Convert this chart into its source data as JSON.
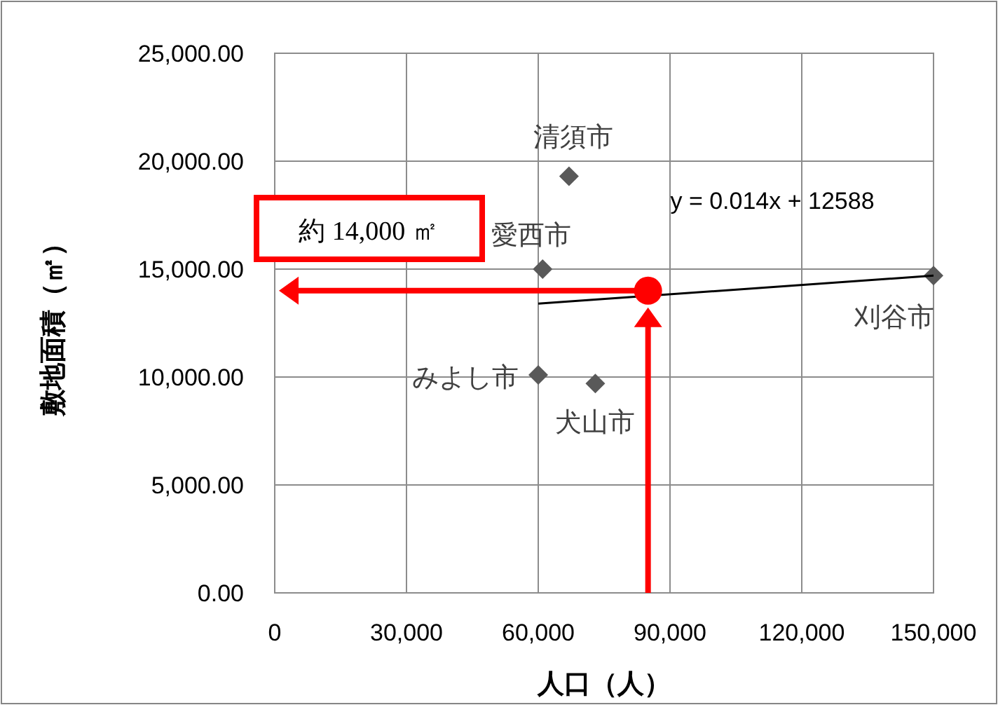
{
  "chart_data": {
    "type": "scatter",
    "xlabel": "人口（人）",
    "ylabel": "敷地面積（㎡）",
    "xlim": [
      0,
      150000
    ],
    "ylim": [
      0,
      25000
    ],
    "xticks": [
      {
        "value": 0,
        "label": "0"
      },
      {
        "value": 30000,
        "label": "30,000"
      },
      {
        "value": 60000,
        "label": "60,000"
      },
      {
        "value": 90000,
        "label": "90,000"
      },
      {
        "value": 120000,
        "label": "120,000"
      },
      {
        "value": 150000,
        "label": "150,000"
      }
    ],
    "yticks": [
      {
        "value": 0,
        "label": "0.00"
      },
      {
        "value": 5000,
        "label": "5,000.00"
      },
      {
        "value": 10000,
        "label": "10,000.00"
      },
      {
        "value": 15000,
        "label": "15,000.00"
      },
      {
        "value": 20000,
        "label": "20,000.00"
      },
      {
        "value": 25000,
        "label": "25,000.00"
      }
    ],
    "grid": true,
    "legend": false,
    "marker": "diamond",
    "series": [
      {
        "type": "scatter",
        "color": "#595959",
        "x": [
          67000,
          61000,
          150000,
          60000,
          73000
        ],
        "values": [
          19300,
          15000,
          14700,
          10100,
          9700
        ]
      },
      {
        "type": "line",
        "color": "#000000",
        "marker": "none",
        "x": [
          60000,
          150000
        ],
        "values": [
          13400,
          14700
        ]
      },
      {
        "type": "scatter",
        "color": "#ff0000",
        "marker": "circle",
        "x": [
          85000
        ],
        "values": [
          14000
        ]
      }
    ],
    "annotations": [
      {
        "text": "清須市",
        "x": 67000,
        "y": 19300
      },
      {
        "text": "愛西市",
        "x": 61000,
        "y": 15000
      },
      {
        "text": "刈谷市",
        "x": 150000,
        "y": 14700
      },
      {
        "text": "みよし市",
        "x": 60000,
        "y": 10100
      },
      {
        "text": "犬山市",
        "x": 73000,
        "y": 9700
      },
      "y = 0.014x + 12588",
      "約 14,000 ㎡"
    ]
  }
}
